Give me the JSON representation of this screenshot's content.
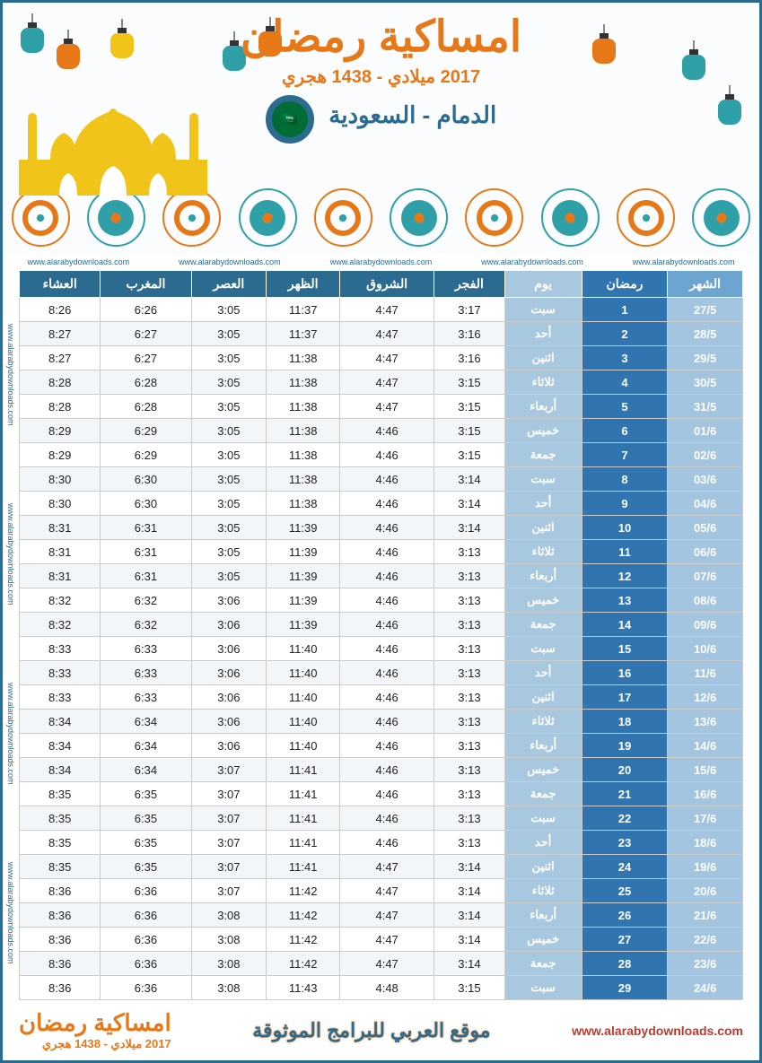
{
  "header": {
    "title": "امساكية رمضان",
    "subtitle_miladi": "2017 ميلادي",
    "subtitle_hijri": "1438 هجري",
    "subtitle_sep": " - ",
    "city": "الدمام - السعودية"
  },
  "watermark": "www.alarabydownloads.com",
  "colors": {
    "th_date": "#6ba5d0",
    "th_ramadan": "#3075b0",
    "th_day": "#a8c8e0",
    "th_prayer": "#2a6b8f",
    "td_date": "#a3c5df",
    "td_ramadan": "#3075b0",
    "td_day": "#a8c8e0",
    "accent_orange": "#e67817",
    "accent_teal": "#2fa0a8"
  },
  "table": {
    "headers": {
      "month": "الشهر",
      "ramadan": "رمضان",
      "day": "يوم",
      "fajr": "الفجر",
      "shorouq": "الشروق",
      "dhuhr": "الظهر",
      "asr": "العصر",
      "maghrib": "المغرب",
      "isha": "العشاء"
    },
    "rows": [
      {
        "date": "27/5",
        "ramadan": "1",
        "day": "سبت",
        "fajr": "3:17",
        "shorouq": "4:47",
        "dhuhr": "11:37",
        "asr": "3:05",
        "maghrib": "6:26",
        "isha": "8:26"
      },
      {
        "date": "28/5",
        "ramadan": "2",
        "day": "أحد",
        "fajr": "3:16",
        "shorouq": "4:47",
        "dhuhr": "11:37",
        "asr": "3:05",
        "maghrib": "6:27",
        "isha": "8:27"
      },
      {
        "date": "29/5",
        "ramadan": "3",
        "day": "اثنين",
        "fajr": "3:16",
        "shorouq": "4:47",
        "dhuhr": "11:38",
        "asr": "3:05",
        "maghrib": "6:27",
        "isha": "8:27"
      },
      {
        "date": "30/5",
        "ramadan": "4",
        "day": "ثلاثاء",
        "fajr": "3:15",
        "shorouq": "4:47",
        "dhuhr": "11:38",
        "asr": "3:05",
        "maghrib": "6:28",
        "isha": "8:28"
      },
      {
        "date": "31/5",
        "ramadan": "5",
        "day": "أربعاء",
        "fajr": "3:15",
        "shorouq": "4:47",
        "dhuhr": "11:38",
        "asr": "3:05",
        "maghrib": "6:28",
        "isha": "8:28"
      },
      {
        "date": "01/6",
        "ramadan": "6",
        "day": "خميس",
        "fajr": "3:15",
        "shorouq": "4:46",
        "dhuhr": "11:38",
        "asr": "3:05",
        "maghrib": "6:29",
        "isha": "8:29"
      },
      {
        "date": "02/6",
        "ramadan": "7",
        "day": "جمعة",
        "fajr": "3:15",
        "shorouq": "4:46",
        "dhuhr": "11:38",
        "asr": "3:05",
        "maghrib": "6:29",
        "isha": "8:29"
      },
      {
        "date": "03/6",
        "ramadan": "8",
        "day": "سبت",
        "fajr": "3:14",
        "shorouq": "4:46",
        "dhuhr": "11:38",
        "asr": "3:05",
        "maghrib": "6:30",
        "isha": "8:30"
      },
      {
        "date": "04/6",
        "ramadan": "9",
        "day": "أحد",
        "fajr": "3:14",
        "shorouq": "4:46",
        "dhuhr": "11:38",
        "asr": "3:05",
        "maghrib": "6:30",
        "isha": "8:30"
      },
      {
        "date": "05/6",
        "ramadan": "10",
        "day": "اثنين",
        "fajr": "3:14",
        "shorouq": "4:46",
        "dhuhr": "11:39",
        "asr": "3:05",
        "maghrib": "6:31",
        "isha": "8:31"
      },
      {
        "date": "06/6",
        "ramadan": "11",
        "day": "ثلاثاء",
        "fajr": "3:13",
        "shorouq": "4:46",
        "dhuhr": "11:39",
        "asr": "3:05",
        "maghrib": "6:31",
        "isha": "8:31"
      },
      {
        "date": "07/6",
        "ramadan": "12",
        "day": "أربعاء",
        "fajr": "3:13",
        "shorouq": "4:46",
        "dhuhr": "11:39",
        "asr": "3:05",
        "maghrib": "6:31",
        "isha": "8:31"
      },
      {
        "date": "08/6",
        "ramadan": "13",
        "day": "خميس",
        "fajr": "3:13",
        "shorouq": "4:46",
        "dhuhr": "11:39",
        "asr": "3:06",
        "maghrib": "6:32",
        "isha": "8:32"
      },
      {
        "date": "09/6",
        "ramadan": "14",
        "day": "جمعة",
        "fajr": "3:13",
        "shorouq": "4:46",
        "dhuhr": "11:39",
        "asr": "3:06",
        "maghrib": "6:32",
        "isha": "8:32"
      },
      {
        "date": "10/6",
        "ramadan": "15",
        "day": "سبت",
        "fajr": "3:13",
        "shorouq": "4:46",
        "dhuhr": "11:40",
        "asr": "3:06",
        "maghrib": "6:33",
        "isha": "8:33"
      },
      {
        "date": "11/6",
        "ramadan": "16",
        "day": "أحد",
        "fajr": "3:13",
        "shorouq": "4:46",
        "dhuhr": "11:40",
        "asr": "3:06",
        "maghrib": "6:33",
        "isha": "8:33"
      },
      {
        "date": "12/6",
        "ramadan": "17",
        "day": "اثنين",
        "fajr": "3:13",
        "shorouq": "4:46",
        "dhuhr": "11:40",
        "asr": "3:06",
        "maghrib": "6:33",
        "isha": "8:33"
      },
      {
        "date": "13/6",
        "ramadan": "18",
        "day": "ثلاثاء",
        "fajr": "3:13",
        "shorouq": "4:46",
        "dhuhr": "11:40",
        "asr": "3:06",
        "maghrib": "6:34",
        "isha": "8:34"
      },
      {
        "date": "14/6",
        "ramadan": "19",
        "day": "أربعاء",
        "fajr": "3:13",
        "shorouq": "4:46",
        "dhuhr": "11:40",
        "asr": "3:06",
        "maghrib": "6:34",
        "isha": "8:34"
      },
      {
        "date": "15/6",
        "ramadan": "20",
        "day": "خميس",
        "fajr": "3:13",
        "shorouq": "4:46",
        "dhuhr": "11:41",
        "asr": "3:07",
        "maghrib": "6:34",
        "isha": "8:34"
      },
      {
        "date": "16/6",
        "ramadan": "21",
        "day": "جمعة",
        "fajr": "3:13",
        "shorouq": "4:46",
        "dhuhr": "11:41",
        "asr": "3:07",
        "maghrib": "6:35",
        "isha": "8:35"
      },
      {
        "date": "17/6",
        "ramadan": "22",
        "day": "سبت",
        "fajr": "3:13",
        "shorouq": "4:46",
        "dhuhr": "11:41",
        "asr": "3:07",
        "maghrib": "6:35",
        "isha": "8:35"
      },
      {
        "date": "18/6",
        "ramadan": "23",
        "day": "أحد",
        "fajr": "3:13",
        "shorouq": "4:46",
        "dhuhr": "11:41",
        "asr": "3:07",
        "maghrib": "6:35",
        "isha": "8:35"
      },
      {
        "date": "19/6",
        "ramadan": "24",
        "day": "اثنين",
        "fajr": "3:14",
        "shorouq": "4:47",
        "dhuhr": "11:41",
        "asr": "3:07",
        "maghrib": "6:35",
        "isha": "8:35"
      },
      {
        "date": "20/6",
        "ramadan": "25",
        "day": "ثلاثاء",
        "fajr": "3:14",
        "shorouq": "4:47",
        "dhuhr": "11:42",
        "asr": "3:07",
        "maghrib": "6:36",
        "isha": "8:36"
      },
      {
        "date": "21/6",
        "ramadan": "26",
        "day": "أربعاء",
        "fajr": "3:14",
        "shorouq": "4:47",
        "dhuhr": "11:42",
        "asr": "3:08",
        "maghrib": "6:36",
        "isha": "8:36"
      },
      {
        "date": "22/6",
        "ramadan": "27",
        "day": "خميس",
        "fajr": "3:14",
        "shorouq": "4:47",
        "dhuhr": "11:42",
        "asr": "3:08",
        "maghrib": "6:36",
        "isha": "8:36"
      },
      {
        "date": "23/6",
        "ramadan": "28",
        "day": "جمعة",
        "fajr": "3:14",
        "shorouq": "4:47",
        "dhuhr": "11:42",
        "asr": "3:08",
        "maghrib": "6:36",
        "isha": "8:36"
      },
      {
        "date": "24/6",
        "ramadan": "29",
        "day": "سبت",
        "fajr": "3:15",
        "shorouq": "4:48",
        "dhuhr": "11:43",
        "asr": "3:08",
        "maghrib": "6:36",
        "isha": "8:36"
      }
    ]
  },
  "footer": {
    "title": "امساكية رمضان",
    "subtitle": "2017 ميلادي - 1438 هجري",
    "center": "موقع العربي للبرامج الموثوقة",
    "url": "www.alarabydownloads.com"
  }
}
